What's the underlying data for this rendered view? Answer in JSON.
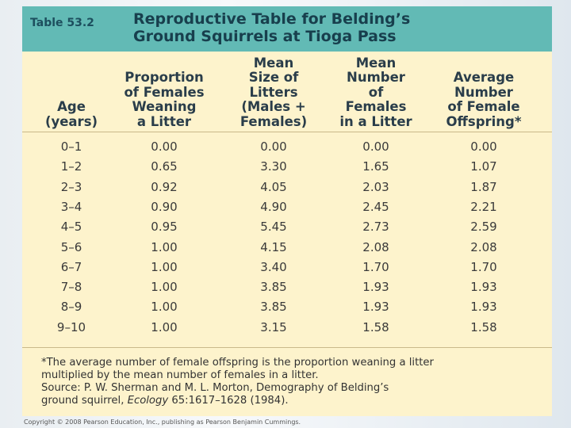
{
  "table": {
    "label": "Table 53.2",
    "title": [
      "Reproductive Table for Belding’s",
      "Ground Squirrels at Tioga Pass"
    ],
    "columns": [
      [
        "Age",
        "(years)"
      ],
      [
        "Proportion",
        "of Females",
        "Weaning",
        "a Litter"
      ],
      [
        "Mean",
        "Size of",
        "Litters",
        "(Males +",
        "Females)"
      ],
      [
        "Mean",
        "Number",
        "of",
        "Females",
        "in a Litter"
      ],
      [
        "Average",
        "Number",
        "of Female",
        "Offspring*"
      ]
    ],
    "rows": [
      [
        "0–1",
        "0.00",
        "0.00",
        "0.00",
        "0.00"
      ],
      [
        "1–2",
        "0.65",
        "3.30",
        "1.65",
        "1.07"
      ],
      [
        "2–3",
        "0.92",
        "4.05",
        "2.03",
        "1.87"
      ],
      [
        "3–4",
        "0.90",
        "4.90",
        "2.45",
        "2.21"
      ],
      [
        "4–5",
        "0.95",
        "5.45",
        "2.73",
        "2.59"
      ],
      [
        "5–6",
        "1.00",
        "4.15",
        "2.08",
        "2.08"
      ],
      [
        "6–7",
        "1.00",
        "3.40",
        "1.70",
        "1.70"
      ],
      [
        "7–8",
        "1.00",
        "3.85",
        "1.93",
        "1.93"
      ],
      [
        "8–9",
        "1.00",
        "3.85",
        "1.93",
        "1.93"
      ],
      [
        "9–10",
        "1.00",
        "3.15",
        "1.58",
        "1.58"
      ]
    ],
    "footnote": [
      "*The average number of female offspring is the proportion weaning a litter",
      "multiplied by the mean number of females in a litter."
    ],
    "source": [
      "Source: P. W. Sherman and M. L. Morton, Demography of Belding’s",
      "ground squirrel, ",
      "Ecology",
      " 65:1617–1628 (1984)."
    ]
  },
  "copyright": "Copyright © 2008 Pearson Education, Inc., publishing as Pearson Benjamin Cummings."
}
